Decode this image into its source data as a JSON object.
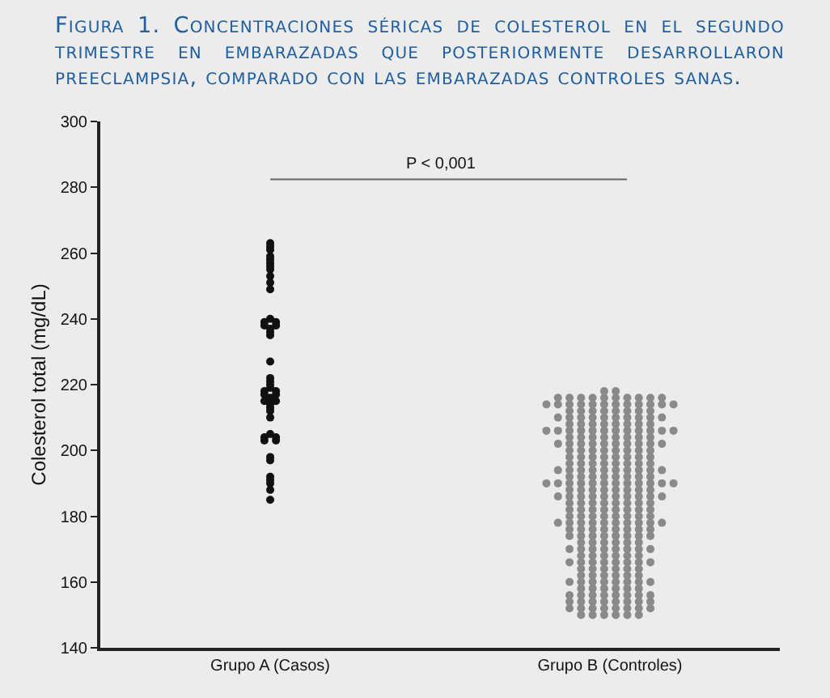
{
  "chart_data": {
    "type": "scatter",
    "title": "Figura 1. Concentraciones séricas de colesterol en el segundo trimestre en embarazadas que posteriormente desarrollaron preeclampsia, comparado con las embarazadas controles sanas.",
    "ylabel": "Colesterol total (mg/dL)",
    "categories": [
      "Grupo A (Casos)",
      "Grupo B (Controles)"
    ],
    "ylim": [
      140,
      300
    ],
    "yticks": [
      140,
      160,
      180,
      200,
      220,
      240,
      260,
      280,
      300
    ],
    "grid": false,
    "marker": "circle",
    "annotations": [
      "P < 0,001"
    ],
    "series": [
      {
        "color": "#111111",
        "x": [
          "Grupo A (Casos)",
          "Grupo A (Casos)",
          "Grupo A (Casos)",
          "Grupo A (Casos)",
          "Grupo A (Casos)",
          "Grupo A (Casos)",
          "Grupo A (Casos)",
          "Grupo A (Casos)",
          "Grupo A (Casos)",
          "Grupo A (Casos)",
          "Grupo A (Casos)",
          "Grupo A (Casos)",
          "Grupo A (Casos)",
          "Grupo A (Casos)",
          "Grupo A (Casos)",
          "Grupo A (Casos)",
          "Grupo A (Casos)",
          "Grupo A (Casos)",
          "Grupo A (Casos)",
          "Grupo A (Casos)",
          "Grupo A (Casos)",
          "Grupo A (Casos)",
          "Grupo A (Casos)",
          "Grupo A (Casos)",
          "Grupo A (Casos)",
          "Grupo A (Casos)",
          "Grupo A (Casos)",
          "Grupo A (Casos)",
          "Grupo A (Casos)",
          "Grupo A (Casos)",
          "Grupo A (Casos)",
          "Grupo A (Casos)",
          "Grupo A (Casos)",
          "Grupo A (Casos)",
          "Grupo A (Casos)",
          "Grupo A (Casos)",
          "Grupo A (Casos)",
          "Grupo A (Casos)",
          "Grupo A (Casos)",
          "Grupo A (Casos)",
          "Grupo A (Casos)",
          "Grupo A (Casos)",
          "Grupo A (Casos)",
          "Grupo A (Casos)",
          "Grupo A (Casos)",
          "Grupo A (Casos)",
          "Grupo A (Casos)"
        ],
        "values": [
          263,
          262,
          261,
          259,
          258,
          257,
          256,
          255,
          253,
          251,
          249,
          240,
          239,
          239,
          238,
          238,
          237,
          236,
          235,
          227,
          222,
          221,
          220,
          219,
          218,
          218,
          217,
          217,
          216,
          215,
          215,
          214,
          213,
          212,
          210,
          205,
          204,
          204,
          203,
          203,
          198,
          197,
          192,
          191,
          190,
          188,
          185
        ]
      },
      {
        "color": "#8a8a8a",
        "x": [
          "Grupo B (Controles)",
          "Grupo B (Controles)",
          "Grupo B (Controles)",
          "Grupo B (Controles)",
          "Grupo B (Controles)",
          "Grupo B (Controles)",
          "Grupo B (Controles)",
          "Grupo B (Controles)",
          "Grupo B (Controles)",
          "Grupo B (Controles)",
          "Grupo B (Controles)",
          "Grupo B (Controles)",
          "Grupo B (Controles)",
          "Grupo B (Controles)",
          "Grupo B (Controles)",
          "Grupo B (Controles)",
          "Grupo B (Controles)",
          "Grupo B (Controles)",
          "Grupo B (Controles)",
          "Grupo B (Controles)",
          "Grupo B (Controles)",
          "Grupo B (Controles)",
          "Grupo B (Controles)",
          "Grupo B (Controles)",
          "Grupo B (Controles)",
          "Grupo B (Controles)",
          "Grupo B (Controles)",
          "Grupo B (Controles)",
          "Grupo B (Controles)",
          "Grupo B (Controles)",
          "Grupo B (Controles)",
          "Grupo B (Controles)",
          "Grupo B (Controles)",
          "Grupo B (Controles)",
          "Grupo B (Controles)",
          "Grupo B (Controles)",
          "Grupo B (Controles)",
          "Grupo B (Controles)",
          "Grupo B (Controles)",
          "Grupo B (Controles)",
          "Grupo B (Controles)",
          "Grupo B (Controles)",
          "Grupo B (Controles)",
          "Grupo B (Controles)",
          "Grupo B (Controles)",
          "Grupo B (Controles)",
          "Grupo B (Controles)",
          "Grupo B (Controles)",
          "Grupo B (Controles)",
          "Grupo B (Controles)",
          "Grupo B (Controles)",
          "Grupo B (Controles)",
          "Grupo B (Controles)",
          "Grupo B (Controles)",
          "Grupo B (Controles)",
          "Grupo B (Controles)",
          "Grupo B (Controles)",
          "Grupo B (Controles)",
          "Grupo B (Controles)",
          "Grupo B (Controles)",
          "Grupo B (Controles)",
          "Grupo B (Controles)",
          "Grupo B (Controles)",
          "Grupo B (Controles)",
          "Grupo B (Controles)",
          "Grupo B (Controles)",
          "Grupo B (Controles)",
          "Grupo B (Controles)",
          "Grupo B (Controles)",
          "Grupo B (Controles)",
          "Grupo B (Controles)",
          "Grupo B (Controles)",
          "Grupo B (Controles)",
          "Grupo B (Controles)",
          "Grupo B (Controles)",
          "Grupo B (Controles)",
          "Grupo B (Controles)",
          "Grupo B (Controles)",
          "Grupo B (Controles)",
          "Grupo B (Controles)",
          "Grupo B (Controles)",
          "Grupo B (Controles)",
          "Grupo B (Controles)",
          "Grupo B (Controles)",
          "Grupo B (Controles)",
          "Grupo B (Controles)",
          "Grupo B (Controles)",
          "Grupo B (Controles)",
          "Grupo B (Controles)",
          "Grupo B (Controles)",
          "Grupo B (Controles)",
          "Grupo B (Controles)",
          "Grupo B (Controles)",
          "Grupo B (Controles)",
          "Grupo B (Controles)",
          "Grupo B (Controles)",
          "Grupo B (Controles)",
          "Grupo B (Controles)",
          "Grupo B (Controles)",
          "Grupo B (Controles)",
          "Grupo B (Controles)",
          "Grupo B (Controles)",
          "Grupo B (Controles)",
          "Grupo B (Controles)",
          "Grupo B (Controles)",
          "Grupo B (Controles)",
          "Grupo B (Controles)",
          "Grupo B (Controles)",
          "Grupo B (Controles)",
          "Grupo B (Controles)",
          "Grupo B (Controles)",
          "Grupo B (Controles)",
          "Grupo B (Controles)",
          "Grupo B (Controles)",
          "Grupo B (Controles)",
          "Grupo B (Controles)",
          "Grupo B (Controles)",
          "Grupo B (Controles)",
          "Grupo B (Controles)",
          "Grupo B (Controles)",
          "Grupo B (Controles)",
          "Grupo B (Controles)",
          "Grupo B (Controles)",
          "Grupo B (Controles)",
          "Grupo B (Controles)",
          "Grupo B (Controles)",
          "Grupo B (Controles)",
          "Grupo B (Controles)",
          "Grupo B (Controles)",
          "Grupo B (Controles)",
          "Grupo B (Controles)",
          "Grupo B (Controles)",
          "Grupo B (Controles)",
          "Grupo B (Controles)",
          "Grupo B (Controles)",
          "Grupo B (Controles)",
          "Grupo B (Controles)",
          "Grupo B (Controles)",
          "Grupo B (Controles)",
          "Grupo B (Controles)",
          "Grupo B (Controles)",
          "Grupo B (Controles)",
          "Grupo B (Controles)",
          "Grupo B (Controles)",
          "Grupo B (Controles)",
          "Grupo B (Controles)",
          "Grupo B (Controles)",
          "Grupo B (Controles)",
          "Grupo B (Controles)",
          "Grupo B (Controles)",
          "Grupo B (Controles)",
          "Grupo B (Controles)",
          "Grupo B (Controles)",
          "Grupo B (Controles)",
          "Grupo B (Controles)",
          "Grupo B (Controles)",
          "Grupo B (Controles)",
          "Grupo B (Controles)",
          "Grupo B (Controles)",
          "Grupo B (Controles)",
          "Grupo B (Controles)",
          "Grupo B (Controles)",
          "Grupo B (Controles)",
          "Grupo B (Controles)",
          "Grupo B (Controles)",
          "Grupo B (Controles)",
          "Grupo B (Controles)",
          "Grupo B (Controles)",
          "Grupo B (Controles)",
          "Grupo B (Controles)",
          "Grupo B (Controles)",
          "Grupo B (Controles)",
          "Grupo B (Controles)",
          "Grupo B (Controles)",
          "Grupo B (Controles)",
          "Grupo B (Controles)",
          "Grupo B (Controles)",
          "Grupo B (Controles)",
          "Grupo B (Controles)",
          "Grupo B (Controles)",
          "Grupo B (Controles)",
          "Grupo B (Controles)",
          "Grupo B (Controles)",
          "Grupo B (Controles)",
          "Grupo B (Controles)",
          "Grupo B (Controles)",
          "Grupo B (Controles)",
          "Grupo B (Controles)",
          "Grupo B (Controles)",
          "Grupo B (Controles)",
          "Grupo B (Controles)",
          "Grupo B (Controles)",
          "Grupo B (Controles)",
          "Grupo B (Controles)",
          "Grupo B (Controles)",
          "Grupo B (Controles)",
          "Grupo B (Controles)",
          "Grupo B (Controles)",
          "Grupo B (Controles)",
          "Grupo B (Controles)",
          "Grupo B (Controles)",
          "Grupo B (Controles)",
          "Grupo B (Controles)",
          "Grupo B (Controles)",
          "Grupo B (Controles)",
          "Grupo B (Controles)",
          "Grupo B (Controles)",
          "Grupo B (Controles)",
          "Grupo B (Controles)",
          "Grupo B (Controles)",
          "Grupo B (Controles)",
          "Grupo B (Controles)",
          "Grupo B (Controles)",
          "Grupo B (Controles)",
          "Grupo B (Controles)",
          "Grupo B (Controles)",
          "Grupo B (Controles)",
          "Grupo B (Controles)",
          "Grupo B (Controles)",
          "Grupo B (Controles)",
          "Grupo B (Controles)",
          "Grupo B (Controles)",
          "Grupo B (Controles)",
          "Grupo B (Controles)",
          "Grupo B (Controles)",
          "Grupo B (Controles)",
          "Grupo B (Controles)",
          "Grupo B (Controles)",
          "Grupo B (Controles)",
          "Grupo B (Controles)",
          "Grupo B (Controles)",
          "Grupo B (Controles)",
          "Grupo B (Controles)",
          "Grupo B (Controles)",
          "Grupo B (Controles)",
          "Grupo B (Controles)",
          "Grupo B (Controles)",
          "Grupo B (Controles)",
          "Grupo B (Controles)",
          "Grupo B (Controles)",
          "Grupo B (Controles)",
          "Grupo B (Controles)",
          "Grupo B (Controles)",
          "Grupo B (Controles)",
          "Grupo B (Controles)",
          "Grupo B (Controles)",
          "Grupo B (Controles)",
          "Grupo B (Controles)",
          "Grupo B (Controles)",
          "Grupo B (Controles)",
          "Grupo B (Controles)",
          "Grupo B (Controles)",
          "Grupo B (Controles)",
          "Grupo B (Controles)",
          "Grupo B (Controles)",
          "Grupo B (Controles)",
          "Grupo B (Controles)",
          "Grupo B (Controles)",
          "Grupo B (Controles)",
          "Grupo B (Controles)",
          "Grupo B (Controles)",
          "Grupo B (Controles)",
          "Grupo B (Controles)",
          "Grupo B (Controles)",
          "Grupo B (Controles)",
          "Grupo B (Controles)",
          "Grupo B (Controles)",
          "Grupo B (Controles)",
          "Grupo B (Controles)",
          "Grupo B (Controles)",
          "Grupo B (Controles)",
          "Grupo B (Controles)",
          "Grupo B (Controles)",
          "Grupo B (Controles)",
          "Grupo B (Controles)",
          "Grupo B (Controles)",
          "Grupo B (Controles)",
          "Grupo B (Controles)",
          "Grupo B (Controles)",
          "Grupo B (Controles)",
          "Grupo B (Controles)",
          "Grupo B (Controles)",
          "Grupo B (Controles)",
          "Grupo B (Controles)",
          "Grupo B (Controles)",
          "Grupo B (Controles)"
        ],
        "values": [
          218,
          218,
          216,
          216,
          216,
          216,
          216,
          216,
          216,
          216,
          216,
          216,
          214,
          214,
          214,
          214,
          214,
          214,
          214,
          214,
          214,
          214,
          214,
          214,
          212,
          212,
          212,
          212,
          212,
          212,
          212,
          212,
          210,
          210,
          210,
          210,
          210,
          210,
          210,
          210,
          210,
          210,
          208,
          208,
          208,
          208,
          208,
          208,
          208,
          208,
          206,
          206,
          206,
          206,
          206,
          206,
          206,
          206,
          206,
          206,
          206,
          206,
          204,
          204,
          204,
          204,
          204,
          204,
          204,
          204,
          202,
          202,
          202,
          202,
          202,
          202,
          202,
          202,
          202,
          202,
          200,
          200,
          200,
          200,
          200,
          200,
          200,
          200,
          198,
          198,
          198,
          198,
          198,
          198,
          198,
          198,
          196,
          196,
          196,
          196,
          196,
          196,
          196,
          196,
          194,
          194,
          194,
          194,
          194,
          194,
          194,
          194,
          194,
          194,
          192,
          192,
          192,
          192,
          192,
          192,
          192,
          192,
          190,
          190,
          190,
          190,
          190,
          190,
          190,
          190,
          190,
          190,
          190,
          190,
          188,
          188,
          188,
          188,
          188,
          188,
          188,
          188,
          186,
          186,
          186,
          186,
          186,
          186,
          186,
          186,
          186,
          186,
          184,
          184,
          184,
          184,
          184,
          184,
          184,
          184,
          182,
          182,
          182,
          182,
          182,
          182,
          182,
          182,
          180,
          180,
          180,
          180,
          180,
          180,
          180,
          180,
          178,
          178,
          178,
          178,
          178,
          178,
          178,
          178,
          178,
          178,
          176,
          176,
          176,
          176,
          176,
          176,
          176,
          176,
          174,
          174,
          174,
          174,
          174,
          174,
          174,
          174,
          172,
          172,
          172,
          172,
          172,
          172,
          170,
          170,
          170,
          170,
          170,
          170,
          170,
          170,
          168,
          168,
          168,
          168,
          168,
          168,
          166,
          166,
          166,
          166,
          166,
          166,
          166,
          166,
          164,
          164,
          164,
          164,
          164,
          164,
          162,
          162,
          162,
          162,
          162,
          162,
          160,
          160,
          160,
          160,
          160,
          160,
          160,
          160,
          158,
          158,
          158,
          158,
          158,
          158,
          156,
          156,
          156,
          156,
          156,
          156,
          156,
          156,
          154,
          154,
          154,
          154,
          154,
          154,
          154,
          154,
          152,
          152,
          152,
          152,
          152,
          152,
          152,
          152,
          150,
          150,
          150,
          150,
          150,
          150
        ]
      }
    ]
  }
}
